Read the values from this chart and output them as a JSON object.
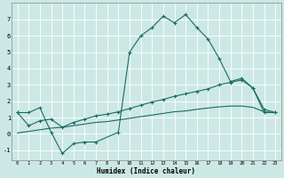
{
  "xlabel": "Humidex (Indice chaleur)",
  "bg_color": "#cce8e5",
  "grid_color": "#ffffff",
  "line_color": "#1a6b62",
  "xlim": [
    -0.5,
    23.5
  ],
  "ylim": [
    -1.6,
    8.0
  ],
  "xticks": [
    0,
    1,
    2,
    3,
    4,
    5,
    6,
    7,
    8,
    9,
    10,
    11,
    12,
    13,
    14,
    15,
    16,
    17,
    18,
    19,
    20,
    21,
    22,
    23
  ],
  "yticks": [
    -1,
    0,
    1,
    2,
    3,
    4,
    5,
    6,
    7
  ],
  "s1_x": [
    0,
    1,
    2,
    3,
    4,
    5,
    6,
    7,
    9,
    10,
    11,
    12,
    13,
    14,
    15,
    16,
    17,
    18,
    19,
    20,
    21,
    22,
    23
  ],
  "s1_y": [
    1.3,
    1.3,
    1.6,
    0.1,
    -1.2,
    -0.6,
    -0.5,
    -0.5,
    0.1,
    5.0,
    6.0,
    6.5,
    7.2,
    6.8,
    7.3,
    6.5,
    5.8,
    4.6,
    3.2,
    3.4,
    2.8,
    1.3,
    1.3
  ],
  "s2_x": [
    0,
    1,
    2,
    3,
    4,
    5,
    6,
    7,
    8,
    9,
    10,
    11,
    12,
    13,
    14,
    15,
    16,
    17,
    18,
    19,
    20,
    21,
    22,
    23
  ],
  "s2_y": [
    1.3,
    0.5,
    0.8,
    0.9,
    0.4,
    0.7,
    0.9,
    1.1,
    1.2,
    1.35,
    1.55,
    1.75,
    1.95,
    2.1,
    2.3,
    2.45,
    2.6,
    2.75,
    3.0,
    3.15,
    3.3,
    2.8,
    1.5,
    1.3
  ],
  "s3_x": [
    0,
    1,
    2,
    3,
    4,
    5,
    6,
    7,
    8,
    9,
    10,
    11,
    12,
    13,
    14,
    15,
    16,
    17,
    18,
    19,
    20,
    21,
    22,
    23
  ],
  "s3_y": [
    0.05,
    0.15,
    0.25,
    0.35,
    0.4,
    0.5,
    0.6,
    0.7,
    0.75,
    0.85,
    0.95,
    1.05,
    1.15,
    1.25,
    1.35,
    1.4,
    1.5,
    1.58,
    1.65,
    1.7,
    1.7,
    1.62,
    1.35,
    1.3
  ]
}
